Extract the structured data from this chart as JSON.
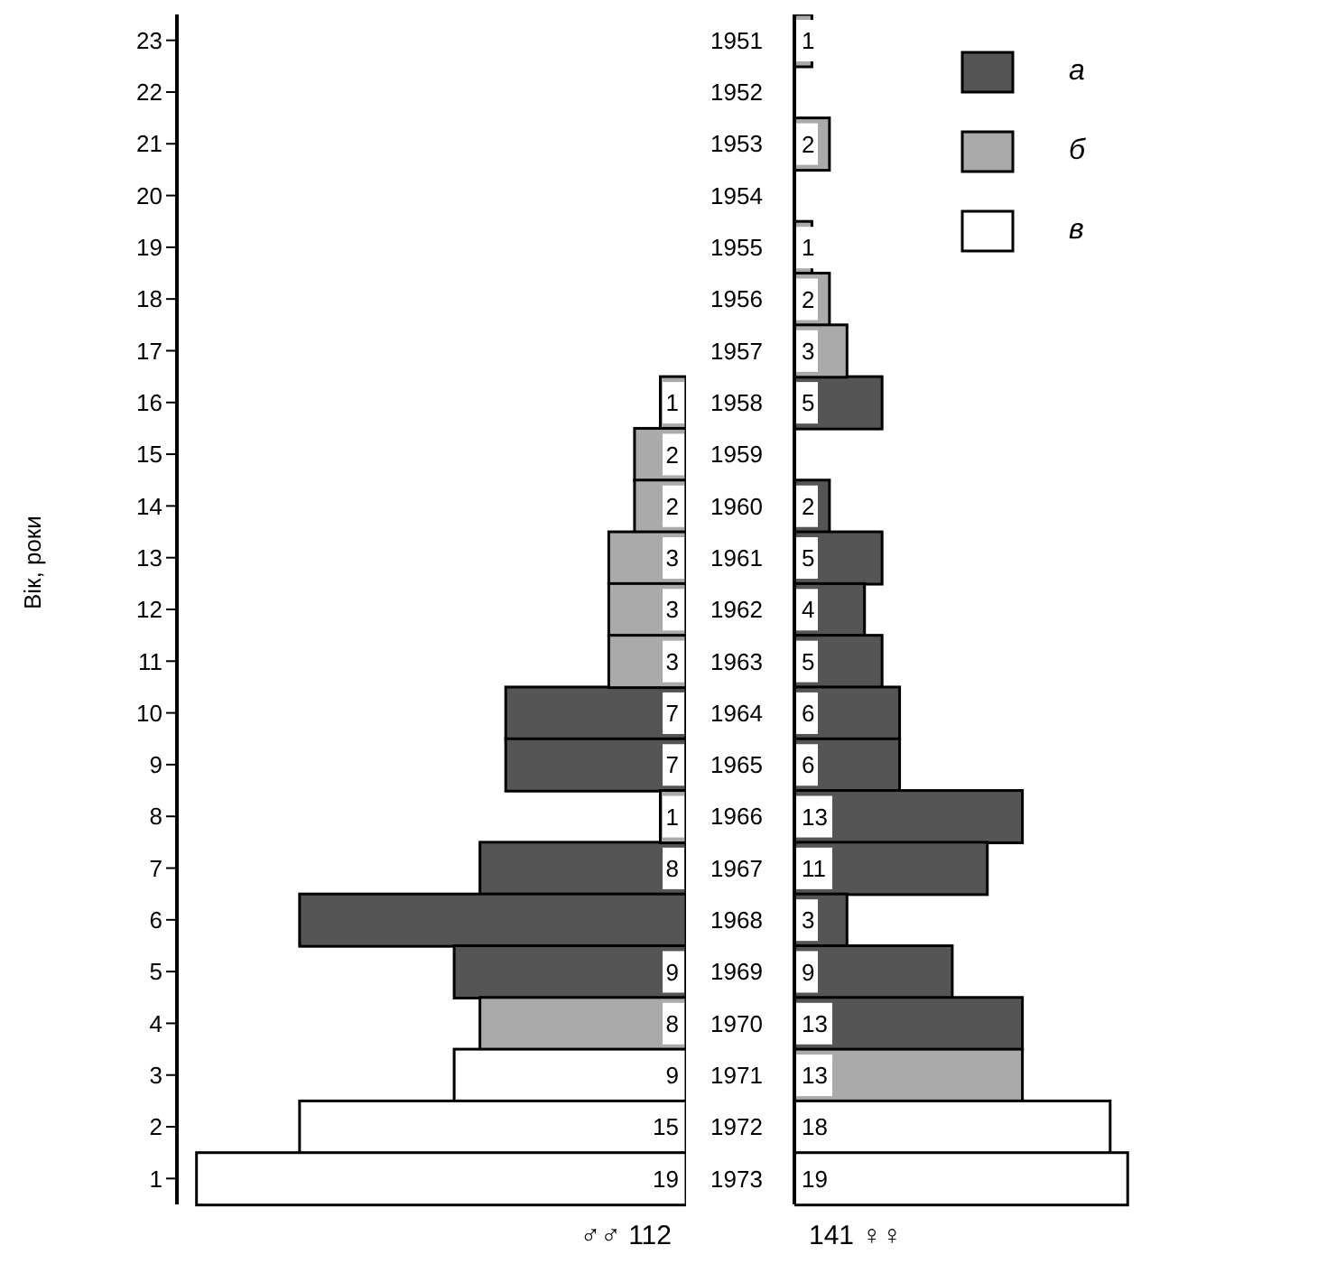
{
  "chart_data": [
    {
      "type": "bar",
      "orientation": "horizontal",
      "stacked": true,
      "ylabel": "Вік, роки",
      "xlabel": "♂♂ 112",
      "categories": [
        "23",
        "22",
        "21",
        "20",
        "19",
        "18",
        "17",
        "16",
        "15",
        "14",
        "13",
        "12",
        "11",
        "10",
        "9",
        "8",
        "7",
        "6",
        "5",
        "4",
        "3",
        "2",
        "1"
      ],
      "tick_labels": "y",
      "legend": false,
      "series": [
        {
          "color": "#555555",
          "values": [
            null,
            null,
            null,
            null,
            null,
            null,
            null,
            null,
            null,
            null,
            null,
            null,
            null,
            7,
            7,
            null,
            8,
            15,
            9,
            null,
            null,
            null,
            null
          ],
          "value_labels": [
            null,
            null,
            null,
            null,
            null,
            null,
            null,
            null,
            null,
            null,
            null,
            null,
            null,
            "7",
            "7",
            null,
            "8",
            null,
            "9",
            null,
            null,
            null,
            null
          ]
        },
        {
          "color": "#aaaaaa",
          "values": [
            null,
            null,
            null,
            null,
            null,
            null,
            null,
            1,
            2,
            2,
            3,
            3,
            3,
            null,
            null,
            1,
            null,
            null,
            null,
            8,
            null,
            null,
            null
          ],
          "value_labels": [
            null,
            null,
            null,
            null,
            null,
            null,
            null,
            "1",
            "2",
            "2",
            "3",
            "3",
            "3",
            null,
            null,
            "1",
            null,
            null,
            null,
            "8",
            null,
            null,
            null
          ]
        },
        {
          "color": "#ffffff",
          "values": [
            null,
            null,
            null,
            null,
            null,
            null,
            null,
            null,
            null,
            null,
            null,
            null,
            null,
            null,
            null,
            null,
            null,
            null,
            null,
            null,
            9,
            15,
            19
          ],
          "value_labels": [
            null,
            null,
            null,
            null,
            null,
            null,
            null,
            null,
            null,
            null,
            null,
            null,
            null,
            null,
            null,
            null,
            null,
            null,
            null,
            null,
            "9",
            "15",
            "19"
          ]
        }
      ]
    },
    {
      "type": "bar",
      "orientation": "horizontal",
      "stacked": true,
      "xlabel": "141 ♀♀",
      "categories": [
        "1951",
        "1952",
        "1953",
        "1954",
        "1955",
        "1956",
        "1957",
        "1958",
        "1959",
        "1960",
        "1961",
        "1962",
        "1963",
        "1964",
        "1965",
        "1966",
        "1967",
        "1968",
        "1969",
        "1970",
        "1971",
        "1972",
        "1973"
      ],
      "tick_labels": "y",
      "legend": "top right",
      "series": [
        {
          "name": "а",
          "color": "#555555",
          "values": [
            null,
            null,
            null,
            null,
            null,
            null,
            null,
            5,
            null,
            2,
            5,
            4,
            5,
            6,
            6,
            13,
            11,
            3,
            9,
            13,
            null,
            null,
            null
          ],
          "value_labels": [
            null,
            null,
            null,
            null,
            null,
            null,
            null,
            "5",
            null,
            "2",
            "5",
            "4",
            "5",
            "6",
            "6",
            "13",
            "11",
            "3",
            "9",
            "13",
            null,
            null,
            null
          ]
        },
        {
          "name": "б",
          "color": "#aaaaaa",
          "values": [
            1,
            null,
            2,
            null,
            1,
            2,
            3,
            null,
            null,
            null,
            null,
            null,
            null,
            null,
            null,
            null,
            null,
            null,
            null,
            null,
            13,
            null,
            null
          ],
          "value_labels": [
            "1",
            null,
            "2",
            null,
            "1",
            "2",
            "3",
            null,
            null,
            null,
            null,
            null,
            null,
            null,
            null,
            null,
            null,
            null,
            null,
            null,
            "13",
            null,
            null
          ]
        },
        {
          "name": "в",
          "color": "#ffffff",
          "values": [
            null,
            null,
            null,
            null,
            null,
            null,
            null,
            null,
            null,
            null,
            null,
            null,
            null,
            null,
            null,
            null,
            null,
            null,
            null,
            null,
            null,
            18,
            19
          ],
          "value_labels": [
            null,
            null,
            null,
            null,
            null,
            null,
            null,
            null,
            null,
            null,
            null,
            null,
            null,
            null,
            null,
            null,
            null,
            null,
            null,
            null,
            null,
            "18",
            "19"
          ]
        }
      ]
    }
  ]
}
